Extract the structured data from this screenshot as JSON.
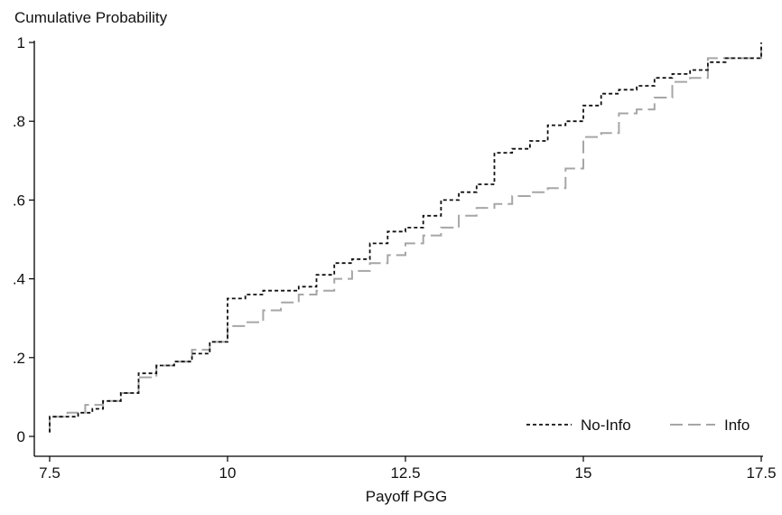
{
  "chart_data": {
    "type": "line",
    "title": "Cumulative Probability",
    "xlabel": "Payoff PGG",
    "ylabel": "",
    "xlim": [
      7.5,
      17.5
    ],
    "ylim": [
      0,
      1
    ],
    "x_ticks": [
      7.5,
      10,
      12.5,
      15,
      17.5
    ],
    "x_tick_labels": [
      "7.5",
      "10",
      "12.5",
      "15",
      "17.5"
    ],
    "y_ticks": [
      0,
      0.2,
      0.4,
      0.6,
      0.8,
      1
    ],
    "y_tick_labels": [
      "0",
      ".2",
      ".4",
      ".6",
      ".8",
      "1"
    ],
    "grid": false,
    "legend_position": "bottom-right",
    "step": true,
    "series": [
      {
        "name": "No-Info",
        "color": "#111111",
        "dash": "short",
        "points": [
          [
            7.5,
            0.01
          ],
          [
            7.5,
            0.05
          ],
          [
            7.9,
            0.05
          ],
          [
            7.9,
            0.06
          ],
          [
            8.1,
            0.06
          ],
          [
            8.1,
            0.07
          ],
          [
            8.25,
            0.07
          ],
          [
            8.25,
            0.09
          ],
          [
            8.5,
            0.09
          ],
          [
            8.5,
            0.11
          ],
          [
            8.75,
            0.11
          ],
          [
            8.75,
            0.16
          ],
          [
            9.0,
            0.16
          ],
          [
            9.0,
            0.18
          ],
          [
            9.25,
            0.18
          ],
          [
            9.25,
            0.19
          ],
          [
            9.5,
            0.19
          ],
          [
            9.5,
            0.21
          ],
          [
            9.75,
            0.21
          ],
          [
            9.75,
            0.24
          ],
          [
            10.0,
            0.24
          ],
          [
            10.0,
            0.35
          ],
          [
            10.25,
            0.35
          ],
          [
            10.25,
            0.36
          ],
          [
            10.5,
            0.36
          ],
          [
            10.5,
            0.37
          ],
          [
            11.0,
            0.37
          ],
          [
            11.0,
            0.38
          ],
          [
            11.25,
            0.38
          ],
          [
            11.25,
            0.41
          ],
          [
            11.5,
            0.41
          ],
          [
            11.5,
            0.44
          ],
          [
            11.75,
            0.44
          ],
          [
            11.75,
            0.45
          ],
          [
            12.0,
            0.45
          ],
          [
            12.0,
            0.49
          ],
          [
            12.25,
            0.49
          ],
          [
            12.25,
            0.52
          ],
          [
            12.5,
            0.52
          ],
          [
            12.5,
            0.53
          ],
          [
            12.75,
            0.53
          ],
          [
            12.75,
            0.56
          ],
          [
            13.0,
            0.56
          ],
          [
            13.0,
            0.6
          ],
          [
            13.25,
            0.6
          ],
          [
            13.25,
            0.62
          ],
          [
            13.5,
            0.62
          ],
          [
            13.5,
            0.64
          ],
          [
            13.75,
            0.64
          ],
          [
            13.75,
            0.72
          ],
          [
            14.0,
            0.72
          ],
          [
            14.0,
            0.73
          ],
          [
            14.25,
            0.73
          ],
          [
            14.25,
            0.75
          ],
          [
            14.5,
            0.75
          ],
          [
            14.5,
            0.79
          ],
          [
            14.75,
            0.79
          ],
          [
            14.75,
            0.8
          ],
          [
            15.0,
            0.8
          ],
          [
            15.0,
            0.84
          ],
          [
            15.25,
            0.84
          ],
          [
            15.25,
            0.87
          ],
          [
            15.5,
            0.87
          ],
          [
            15.5,
            0.88
          ],
          [
            15.75,
            0.88
          ],
          [
            15.75,
            0.89
          ],
          [
            16.0,
            0.89
          ],
          [
            16.0,
            0.91
          ],
          [
            16.25,
            0.91
          ],
          [
            16.25,
            0.92
          ],
          [
            16.5,
            0.92
          ],
          [
            16.5,
            0.93
          ],
          [
            16.75,
            0.93
          ],
          [
            16.75,
            0.95
          ],
          [
            17.0,
            0.95
          ],
          [
            17.0,
            0.96
          ],
          [
            17.5,
            0.96
          ],
          [
            17.5,
            1.0
          ]
        ]
      },
      {
        "name": "Info",
        "color": "#a6a6a6",
        "dash": "long",
        "points": [
          [
            7.5,
            0.01
          ],
          [
            7.5,
            0.05
          ],
          [
            7.75,
            0.05
          ],
          [
            7.75,
            0.06
          ],
          [
            8.0,
            0.06
          ],
          [
            8.0,
            0.08
          ],
          [
            8.25,
            0.08
          ],
          [
            8.25,
            0.09
          ],
          [
            8.5,
            0.09
          ],
          [
            8.5,
            0.11
          ],
          [
            8.75,
            0.11
          ],
          [
            8.75,
            0.15
          ],
          [
            9.0,
            0.15
          ],
          [
            9.0,
            0.18
          ],
          [
            9.25,
            0.18
          ],
          [
            9.25,
            0.19
          ],
          [
            9.5,
            0.19
          ],
          [
            9.5,
            0.22
          ],
          [
            9.75,
            0.22
          ],
          [
            9.75,
            0.24
          ],
          [
            10.0,
            0.24
          ],
          [
            10.0,
            0.28
          ],
          [
            10.25,
            0.28
          ],
          [
            10.25,
            0.29
          ],
          [
            10.5,
            0.29
          ],
          [
            10.5,
            0.32
          ],
          [
            10.75,
            0.32
          ],
          [
            10.75,
            0.34
          ],
          [
            11.0,
            0.34
          ],
          [
            11.0,
            0.36
          ],
          [
            11.25,
            0.36
          ],
          [
            11.25,
            0.37
          ],
          [
            11.5,
            0.37
          ],
          [
            11.5,
            0.4
          ],
          [
            11.75,
            0.4
          ],
          [
            11.75,
            0.42
          ],
          [
            12.0,
            0.42
          ],
          [
            12.0,
            0.44
          ],
          [
            12.25,
            0.44
          ],
          [
            12.25,
            0.46
          ],
          [
            12.5,
            0.46
          ],
          [
            12.5,
            0.49
          ],
          [
            12.75,
            0.49
          ],
          [
            12.75,
            0.51
          ],
          [
            13.0,
            0.51
          ],
          [
            13.0,
            0.53
          ],
          [
            13.25,
            0.53
          ],
          [
            13.25,
            0.56
          ],
          [
            13.5,
            0.56
          ],
          [
            13.5,
            0.58
          ],
          [
            13.75,
            0.58
          ],
          [
            13.75,
            0.59
          ],
          [
            14.0,
            0.59
          ],
          [
            14.0,
            0.61
          ],
          [
            14.25,
            0.61
          ],
          [
            14.25,
            0.62
          ],
          [
            14.5,
            0.62
          ],
          [
            14.5,
            0.63
          ],
          [
            14.75,
            0.63
          ],
          [
            14.75,
            0.68
          ],
          [
            15.0,
            0.68
          ],
          [
            15.0,
            0.76
          ],
          [
            15.25,
            0.76
          ],
          [
            15.25,
            0.77
          ],
          [
            15.5,
            0.77
          ],
          [
            15.5,
            0.82
          ],
          [
            15.75,
            0.82
          ],
          [
            15.75,
            0.83
          ],
          [
            16.0,
            0.83
          ],
          [
            16.0,
            0.86
          ],
          [
            16.25,
            0.86
          ],
          [
            16.25,
            0.9
          ],
          [
            16.5,
            0.9
          ],
          [
            16.5,
            0.91
          ],
          [
            16.75,
            0.91
          ],
          [
            16.75,
            0.96
          ],
          [
            17.5,
            0.96
          ],
          [
            17.5,
            1.0
          ]
        ]
      }
    ]
  }
}
